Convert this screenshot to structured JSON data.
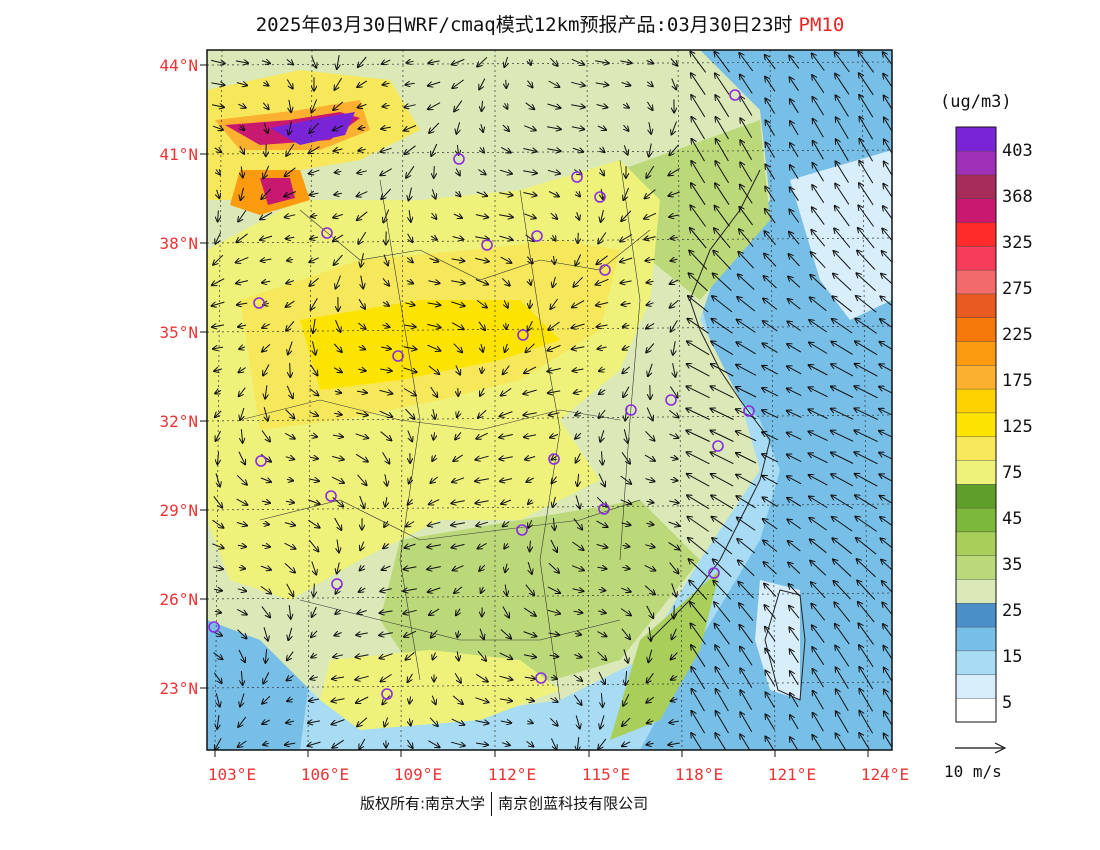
{
  "title": {
    "main": "2025年03月30日WRF/cmaq模式12km预报产品:03月30日23时",
    "pollutant": "PM10"
  },
  "map": {
    "lat_labels": [
      "44°N",
      "41°N",
      "38°N",
      "35°N",
      "32°N",
      "29°N",
      "26°N",
      "23°N"
    ],
    "lon_labels": [
      "103°E",
      "106°E",
      "109°E",
      "112°E",
      "115°E",
      "118°E",
      "121°E",
      "124°E"
    ],
    "station_count_shown": 27,
    "marker_color": "#8a2be2"
  },
  "colorbar": {
    "unit": "(ug/m3)",
    "colors": [
      "#ffffff",
      "#d8eefa",
      "#a8dcf4",
      "#78bfe8",
      "#4a8fc8",
      "#dbe9b8",
      "#bcd97a",
      "#a9cf5a",
      "#7cb83a",
      "#5e9f2a",
      "#eef27a",
      "#f6e85a",
      "#fde400",
      "#fed200",
      "#fbb030",
      "#fc9a10",
      "#f5780a",
      "#e85a20",
      "#f26a6a",
      "#f63c5a",
      "#ff2a2a",
      "#c81870",
      "#a82c5a",
      "#a030b8",
      "#7a24d8"
    ],
    "labels": [
      "5",
      "15",
      "25",
      "35",
      "45",
      "75",
      "125",
      "175",
      "225",
      "275",
      "325",
      "368",
      "403"
    ]
  },
  "wind_reference": {
    "label": "10 m/s"
  },
  "footer": {
    "left": "版权所有:南京大学",
    "right": "南京创蓝科技有限公司"
  }
}
